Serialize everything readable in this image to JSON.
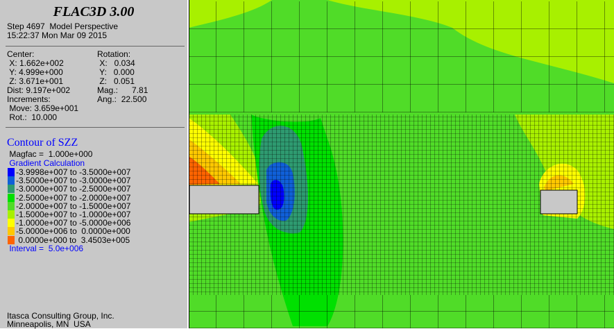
{
  "header": {
    "title": "FLAC3D 3.00",
    "step": "Step 4697  Model Perspective",
    "timestamp": "15:22:37 Mon Mar 09 2015"
  },
  "view": {
    "center_label": "Center:",
    "rotation_label": "Rotation:",
    "center": [
      " X: 1.662e+002",
      " Y: 4.999e+000",
      " Z: 3.671e+001"
    ],
    "rotation": [
      " X:   0.034",
      " Y:   0.000",
      " Z:   0.051"
    ],
    "dist": "Dist: 9.197e+002",
    "mag": "Mag.:      7.81",
    "increments": "Increments:",
    "ang": "Ang.:  22.500",
    "move": " Move: 3.659e+001",
    "rot": " Rot.:  10.000"
  },
  "contour": {
    "title": "Contour of SZZ",
    "magfac": " Magfac =  1.000e+000",
    "method": " Gradient Calculation",
    "legend": [
      {
        "label": "-3.9998e+007 to -3.5000e+007",
        "color": "#0000ff"
      },
      {
        "label": "-3.5000e+007 to -3.0000e+007",
        "color": "#1060d8"
      },
      {
        "label": "-3.0000e+007 to -2.5000e+007",
        "color": "#2e9a70"
      },
      {
        "label": "-2.5000e+007 to -2.0000e+007",
        "color": "#00e000"
      },
      {
        "label": "-2.0000e+007 to -1.5000e+007",
        "color": "#50dc28"
      },
      {
        "label": "-1.5000e+007 to -1.0000e+007",
        "color": "#a8f000"
      },
      {
        "label": "-1.0000e+007 to -5.0000e+006",
        "color": "#ffff00"
      },
      {
        "label": "-5.0000e+006 to  0.0000e+000",
        "color": "#ffc800"
      },
      {
        "label": " 0.0000e+000 to  3.4503e+005",
        "color": "#ff6400"
      }
    ],
    "interval": " Interval =  5.0e+006"
  },
  "footer": {
    "company": "Itasca Consulting Group, Inc.",
    "location": "Minneapolis, MN  USA"
  }
}
